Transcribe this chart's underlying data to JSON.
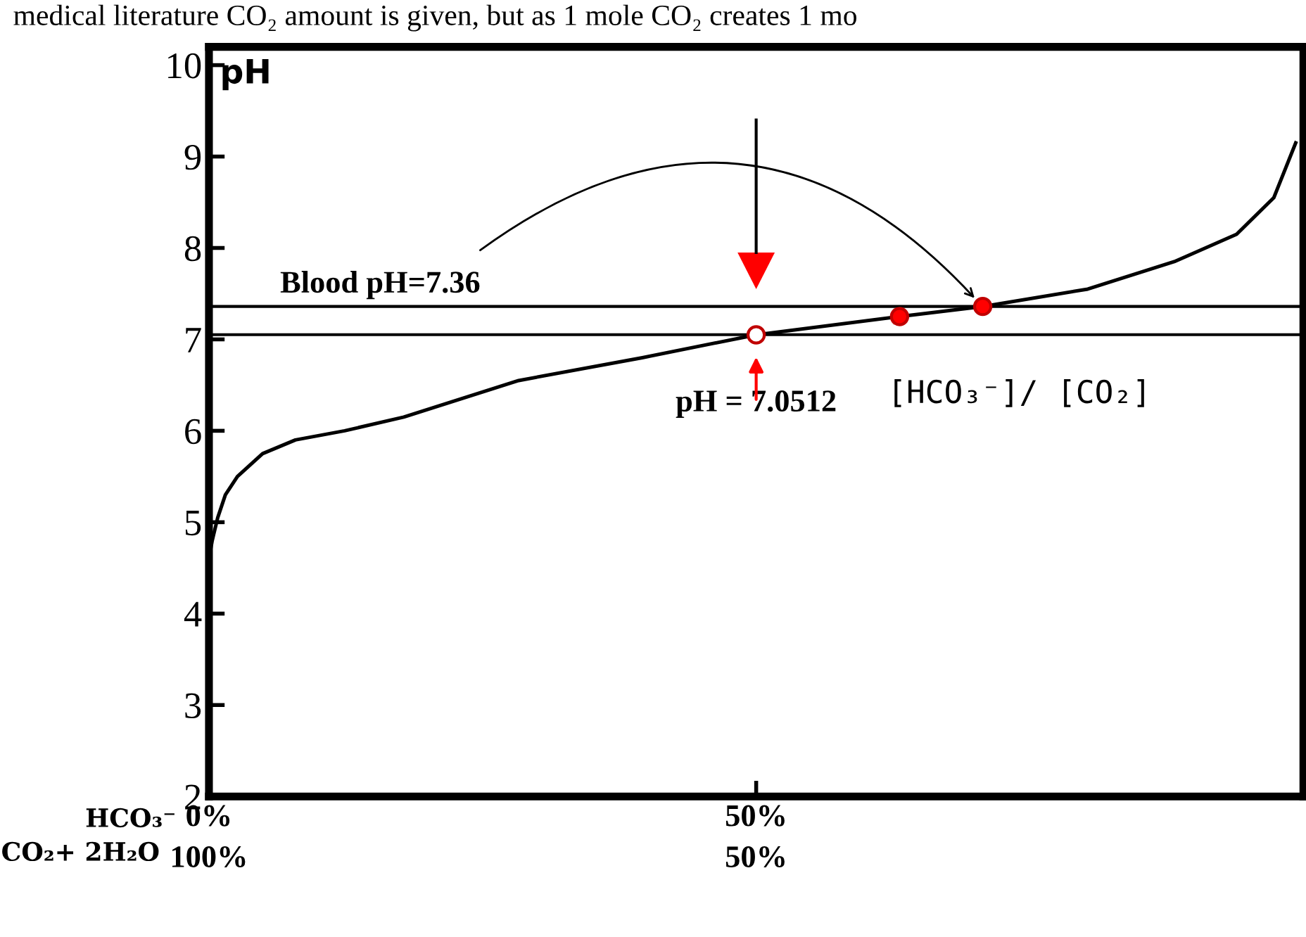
{
  "chart_data": {
    "type": "line",
    "title": "medical literature CO₂ amount is given, but as 1 mole CO₂ creates 1 mo",
    "ylabel": "pH",
    "xlabel": "HCO₃⁻",
    "x2label": "CO₂+ 2H₂O",
    "series": [
      {
        "color": "#000000",
        "x": [
          0,
          0.3,
          0.8,
          1.5,
          2.6,
          4.9,
          7.9,
          12.4,
          17.8,
          28.3,
          39.6,
          50,
          63.1,
          70.7,
          80.3,
          88.2,
          93.9,
          97.3,
          99.3
        ],
        "values": [
          4.6,
          4.8,
          5.05,
          5.3,
          5.5,
          5.75,
          5.9,
          6.0,
          6.15,
          6.55,
          6.8,
          7.05,
          7.25,
          7.36,
          7.55,
          7.85,
          8.15,
          8.55,
          9.15
        ]
      },
      {
        "type": "scatter",
        "marker": "circle",
        "colors": [
          "#ffffff",
          "#ff0000",
          "#ff0000"
        ],
        "x": [
          50,
          63.1,
          70.7
        ],
        "values": [
          7.05,
          7.25,
          7.36
        ]
      }
    ],
    "xlim": [
      0,
      100
    ],
    "xticks": [
      {
        "value": 0,
        "label": "0%"
      },
      {
        "value": 50,
        "label": "50%"
      }
    ],
    "x2lim": [
      100,
      0
    ],
    "x2ticks": [
      {
        "value": 100,
        "label": "100%"
      },
      {
        "value": 50,
        "label": "50%"
      }
    ],
    "ylim": [
      2,
      10.2
    ],
    "yticks": [
      2,
      3,
      4,
      5,
      6,
      7,
      8,
      9,
      10
    ],
    "ref_lines": [
      {
        "axis": "y",
        "value": 7.36,
        "label": "Blood pH=7.36",
        "color": "#000000"
      },
      {
        "axis": "y",
        "value": 7.0512,
        "label": "pH = 7.0512",
        "color": "#000000"
      }
    ],
    "annotations": [
      "[HCO₃⁻]/ [CO₂]"
    ],
    "grid": false,
    "legend": false
  }
}
